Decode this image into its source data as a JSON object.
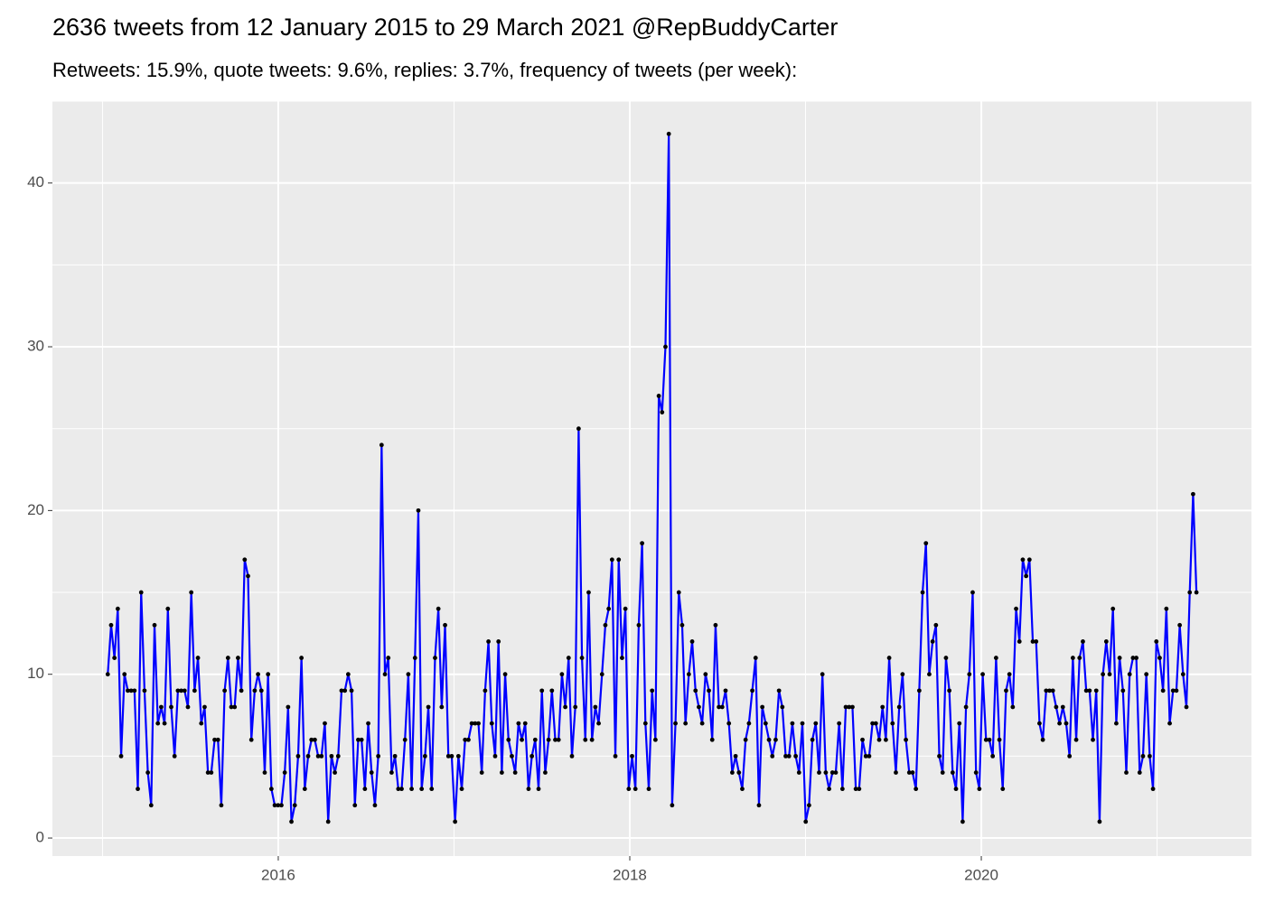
{
  "chart_data": {
    "type": "line",
    "title": "2636 tweets from 12 January 2015 to 29 March 2021 @RepBuddyCarter",
    "subtitle": "Retweets: 15.9%, quote tweets: 9.6%, replies: 3.7%, frequency of tweets (per week):",
    "x": [
      2015.03,
      2015.049,
      2015.068,
      2015.087,
      2015.106,
      2015.125,
      2015.144,
      2015.163,
      2015.182,
      2015.201,
      2015.22,
      2015.239,
      2015.258,
      2015.277,
      2015.296,
      2015.315,
      2015.334,
      2015.353,
      2015.372,
      2015.391,
      2015.41,
      2015.429,
      2015.448,
      2015.467,
      2015.486,
      2015.505,
      2015.524,
      2015.543,
      2015.562,
      2015.581,
      2015.6,
      2015.619,
      2015.638,
      2015.657,
      2015.676,
      2015.695,
      2015.714,
      2015.733,
      2015.752,
      2015.771,
      2015.79,
      2015.809,
      2015.828,
      2015.847,
      2015.866,
      2015.885,
      2015.904,
      2015.923,
      2015.942,
      2015.961,
      2015.98,
      2015.999,
      2016.018,
      2016.037,
      2016.056,
      2016.075,
      2016.094,
      2016.113,
      2016.132,
      2016.151,
      2016.17,
      2016.189,
      2016.208,
      2016.227,
      2016.246,
      2016.265,
      2016.284,
      2016.303,
      2016.322,
      2016.341,
      2016.36,
      2016.379,
      2016.398,
      2016.417,
      2016.436,
      2016.455,
      2016.474,
      2016.493,
      2016.512,
      2016.531,
      2016.55,
      2016.569,
      2016.588,
      2016.607,
      2016.626,
      2016.645,
      2016.664,
      2016.683,
      2016.702,
      2016.721,
      2016.74,
      2016.759,
      2016.778,
      2016.797,
      2016.816,
      2016.835,
      2016.854,
      2016.873,
      2016.892,
      2016.911,
      2016.93,
      2016.949,
      2016.968,
      2016.987,
      2017.006,
      2017.025,
      2017.044,
      2017.063,
      2017.082,
      2017.101,
      2017.12,
      2017.139,
      2017.158,
      2017.177,
      2017.196,
      2017.215,
      2017.234,
      2017.253,
      2017.272,
      2017.291,
      2017.31,
      2017.329,
      2017.348,
      2017.367,
      2017.386,
      2017.405,
      2017.424,
      2017.443,
      2017.462,
      2017.481,
      2017.5,
      2017.519,
      2017.538,
      2017.557,
      2017.576,
      2017.595,
      2017.614,
      2017.633,
      2017.652,
      2017.671,
      2017.69,
      2017.709,
      2017.728,
      2017.747,
      2017.766,
      2017.785,
      2017.804,
      2017.823,
      2017.842,
      2017.861,
      2017.88,
      2017.899,
      2017.918,
      2017.937,
      2017.956,
      2017.975,
      2017.994,
      2018.013,
      2018.032,
      2018.051,
      2018.07,
      2018.089,
      2018.108,
      2018.127,
      2018.146,
      2018.165,
      2018.184,
      2018.203,
      2018.222,
      2018.241,
      2018.26,
      2018.279,
      2018.298,
      2018.317,
      2018.336,
      2018.355,
      2018.374,
      2018.393,
      2018.412,
      2018.431,
      2018.45,
      2018.469,
      2018.488,
      2018.507,
      2018.526,
      2018.545,
      2018.564,
      2018.583,
      2018.602,
      2018.621,
      2018.64,
      2018.659,
      2018.678,
      2018.697,
      2018.716,
      2018.735,
      2018.754,
      2018.773,
      2018.792,
      2018.811,
      2018.83,
      2018.849,
      2018.868,
      2018.887,
      2018.906,
      2018.925,
      2018.944,
      2018.963,
      2018.982,
      2019.001,
      2019.02,
      2019.039,
      2019.058,
      2019.077,
      2019.096,
      2019.115,
      2019.134,
      2019.153,
      2019.172,
      2019.191,
      2019.21,
      2019.229,
      2019.248,
      2019.267,
      2019.286,
      2019.305,
      2019.324,
      2019.343,
      2019.362,
      2019.381,
      2019.4,
      2019.419,
      2019.438,
      2019.457,
      2019.476,
      2019.495,
      2019.514,
      2019.533,
      2019.552,
      2019.571,
      2019.59,
      2019.609,
      2019.628,
      2019.647,
      2019.666,
      2019.685,
      2019.704,
      2019.723,
      2019.742,
      2019.761,
      2019.78,
      2019.799,
      2019.818,
      2019.837,
      2019.856,
      2019.875,
      2019.894,
      2019.913,
      2019.932,
      2019.951,
      2019.97,
      2019.989,
      2020.008,
      2020.027,
      2020.046,
      2020.065,
      2020.084,
      2020.103,
      2020.122,
      2020.141,
      2020.16,
      2020.179,
      2020.198,
      2020.217,
      2020.236,
      2020.255,
      2020.274,
      2020.293,
      2020.312,
      2020.331,
      2020.35,
      2020.369,
      2020.388,
      2020.407,
      2020.426,
      2020.445,
      2020.464,
      2020.483,
      2020.502,
      2020.521,
      2020.54,
      2020.559,
      2020.578,
      2020.597,
      2020.616,
      2020.635,
      2020.654,
      2020.673,
      2020.692,
      2020.711,
      2020.73,
      2020.749,
      2020.768,
      2020.787,
      2020.806,
      2020.825,
      2020.844,
      2020.863,
      2020.882,
      2020.901,
      2020.92,
      2020.939,
      2020.958,
      2020.977,
      2020.996,
      2021.015,
      2021.034,
      2021.053,
      2021.072,
      2021.091,
      2021.11,
      2021.129,
      2021.148,
      2021.167,
      2021.186,
      2021.205,
      2021.224
    ],
    "values": [
      10,
      13,
      11,
      14,
      5,
      10,
      9,
      9,
      9,
      3,
      15,
      9,
      4,
      2,
      13,
      7,
      8,
      7,
      14,
      8,
      5,
      9,
      9,
      9,
      8,
      15,
      9,
      11,
      7,
      8,
      4,
      4,
      6,
      6,
      2,
      9,
      11,
      8,
      8,
      11,
      9,
      17,
      16,
      6,
      9,
      10,
      9,
      4,
      10,
      3,
      2,
      2,
      2,
      4,
      8,
      1,
      2,
      5,
      11,
      3,
      5,
      6,
      6,
      5,
      5,
      7,
      1,
      5,
      4,
      5,
      9,
      9,
      10,
      9,
      2,
      6,
      6,
      3,
      7,
      4,
      2,
      5,
      24,
      10,
      11,
      4,
      5,
      3,
      3,
      6,
      10,
      3,
      11,
      20,
      3,
      5,
      8,
      3,
      11,
      14,
      8,
      13,
      5,
      5,
      1,
      5,
      3,
      6,
      6,
      7,
      7,
      7,
      4,
      9,
      12,
      7,
      5,
      12,
      4,
      10,
      6,
      5,
      4,
      7,
      6,
      7,
      3,
      5,
      6,
      3,
      9,
      4,
      6,
      9,
      6,
      6,
      10,
      8,
      11,
      5,
      8,
      25,
      11,
      6,
      15,
      6,
      8,
      7,
      10,
      13,
      14,
      17,
      5,
      17,
      11,
      14,
      3,
      5,
      3,
      13,
      18,
      7,
      3,
      9,
      6,
      27,
      26,
      30,
      43,
      2,
      7,
      15,
      13,
      7,
      10,
      12,
      9,
      8,
      7,
      10,
      9,
      6,
      13,
      8,
      8,
      9,
      7,
      4,
      5,
      4,
      3,
      6,
      7,
      9,
      11,
      2,
      8,
      7,
      6,
      5,
      6,
      9,
      8,
      5,
      5,
      7,
      5,
      4,
      7,
      1,
      2,
      6,
      7,
      4,
      10,
      4,
      3,
      4,
      4,
      7,
      3,
      8,
      8,
      8,
      3,
      3,
      6,
      5,
      5,
      7,
      7,
      6,
      8,
      6,
      11,
      7,
      4,
      8,
      10,
      6,
      4,
      4,
      3,
      9,
      15,
      18,
      10,
      12,
      13,
      5,
      4,
      11,
      9,
      4,
      3,
      7,
      1,
      8,
      10,
      15,
      4,
      3,
      10,
      6,
      6,
      5,
      11,
      6,
      3,
      9,
      10,
      8,
      14,
      12,
      17,
      16,
      17,
      12,
      12,
      7,
      6,
      9,
      9,
      9,
      8,
      7,
      8,
      7,
      5,
      11,
      6,
      11,
      12,
      9,
      9,
      6,
      9,
      1,
      10,
      12,
      10,
      14,
      7,
      11,
      9,
      4,
      10,
      11,
      11,
      4,
      5,
      10,
      5,
      3,
      12,
      11,
      9,
      14,
      7,
      9,
      9,
      13,
      10,
      8,
      15,
      21,
      15
    ],
    "color": "#0000ff",
    "marker_color": "#000000",
    "xlim": [
      2014.715,
      2021.537
    ],
    "xticks": [
      2016,
      2018,
      2020
    ],
    "ylim": [
      -1.1,
      45.0
    ],
    "yticks": [
      0,
      10,
      20,
      30,
      40
    ],
    "grid": true
  }
}
